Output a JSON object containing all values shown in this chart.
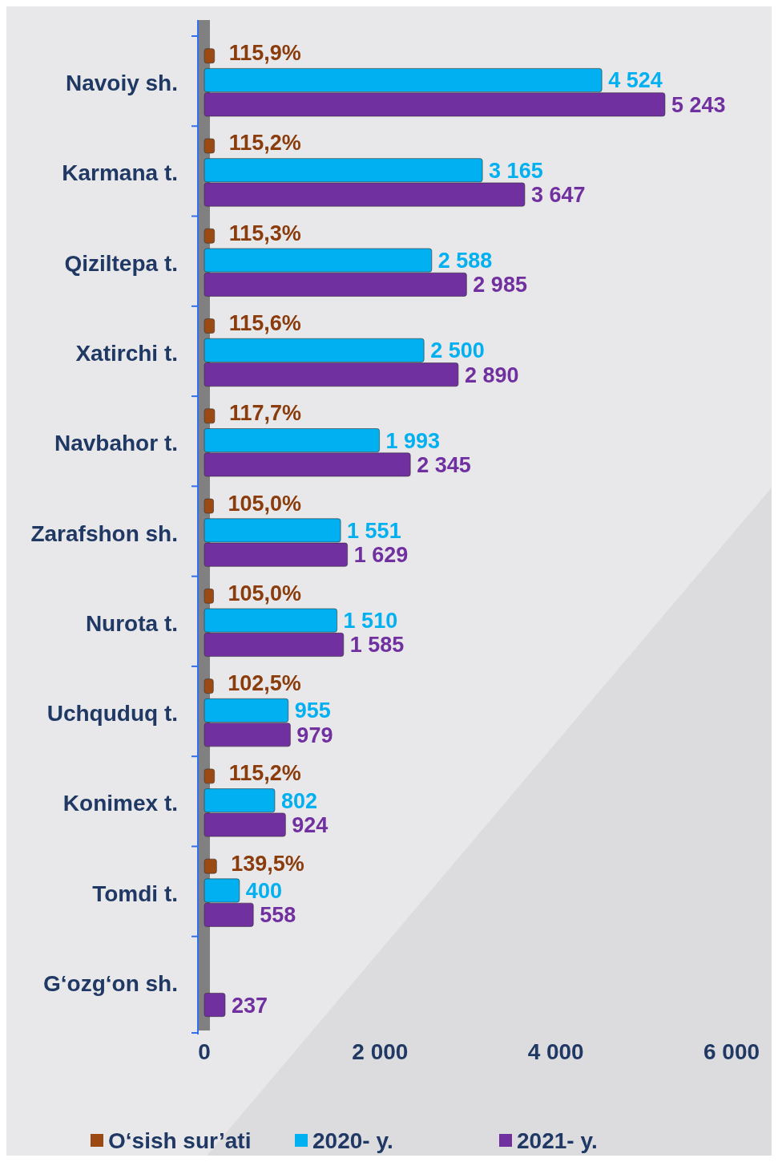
{
  "chart_data": {
    "type": "bar",
    "orientation": "horizontal",
    "categories": [
      "Navoiy sh.",
      "Karmana t.",
      "Qiziltepa t.",
      "Xatirchi t.",
      "Navbahor t.",
      "Zarafshon sh.",
      "Nurota t.",
      "Uchquduq t.",
      "Konimex t.",
      "Tomdi t.",
      "G‘ozg‘on sh."
    ],
    "series": [
      {
        "name": "O‘sish sur’ati",
        "color": "#9c4a14",
        "values": [
          115.9,
          115.2,
          115.3,
          115.6,
          117.7,
          105.0,
          105.0,
          102.5,
          115.2,
          139.5,
          null
        ],
        "value_labels": [
          "115,9%",
          "115,2%",
          "115,3%",
          "115,6%",
          "117,7%",
          "105,0%",
          "105,0%",
          "102,5%",
          "115,2%",
          "139,5%",
          null
        ]
      },
      {
        "name": "2020- y.",
        "color": "#00b0f0",
        "values": [
          4524,
          3165,
          2588,
          2500,
          1993,
          1551,
          1510,
          955,
          802,
          400,
          null
        ],
        "value_labels": [
          "4 524",
          "3 165",
          "2 588",
          "2 500",
          "1 993",
          "1 551",
          "1 510",
          "955",
          "802",
          "400",
          null
        ]
      },
      {
        "name": "2021- y.",
        "color": "#7030a0",
        "values": [
          5243,
          3647,
          2985,
          2890,
          2345,
          1629,
          1585,
          979,
          924,
          558,
          237
        ],
        "value_labels": [
          "5 243",
          "3 647",
          "2 985",
          "2 890",
          "2 345",
          "1 629",
          "1 585",
          "979",
          "924",
          "558",
          "237"
        ]
      }
    ],
    "xlim": [
      0,
      6000
    ],
    "xticks": [
      0,
      {
        "value": 2000,
        "label": "2 000"
      },
      {
        "value": 4000,
        "label": "4 000"
      },
      {
        "value": 6000,
        "label": "6 000"
      }
    ],
    "grid": false,
    "legend": "bottom"
  }
}
